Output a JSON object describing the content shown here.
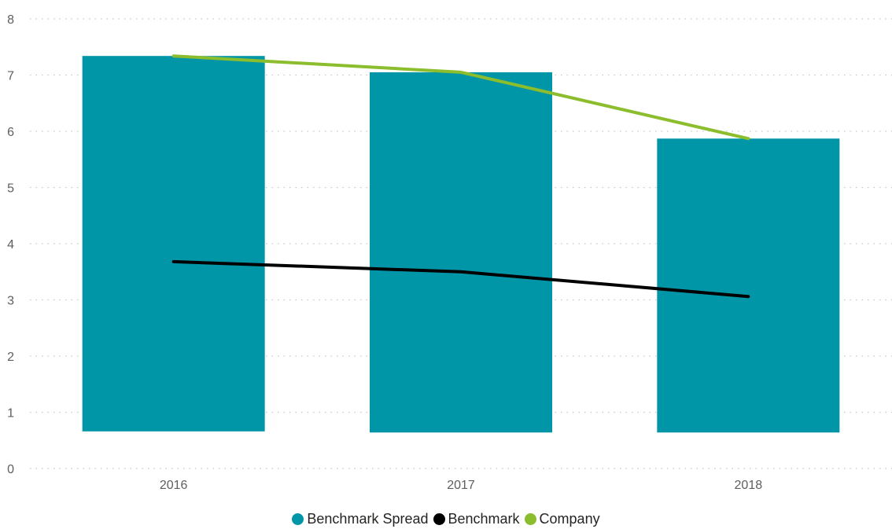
{
  "chart_data": {
    "type": "bar",
    "title": "",
    "xlabel": "",
    "ylabel": "",
    "categories": [
      "2016",
      "2017",
      "2018"
    ],
    "ylim": [
      0,
      8
    ],
    "yticks": [
      "0",
      "1",
      "2",
      "3",
      "4",
      "5",
      "6",
      "7",
      "8"
    ],
    "grid": true,
    "legend_position": "bottom-center",
    "series": [
      {
        "name": "Benchmark Spread",
        "kind": "floating-bar",
        "color": "#0096a8",
        "low": [
          0.66,
          0.64,
          0.64
        ],
        "high": [
          7.34,
          7.05,
          5.87
        ]
      },
      {
        "name": "Benchmark",
        "kind": "line",
        "color": "#000000",
        "values": [
          3.68,
          3.5,
          3.06
        ]
      },
      {
        "name": "Company",
        "kind": "line",
        "color": "#8bbd2d",
        "values": [
          7.34,
          7.05,
          5.87
        ]
      }
    ]
  }
}
